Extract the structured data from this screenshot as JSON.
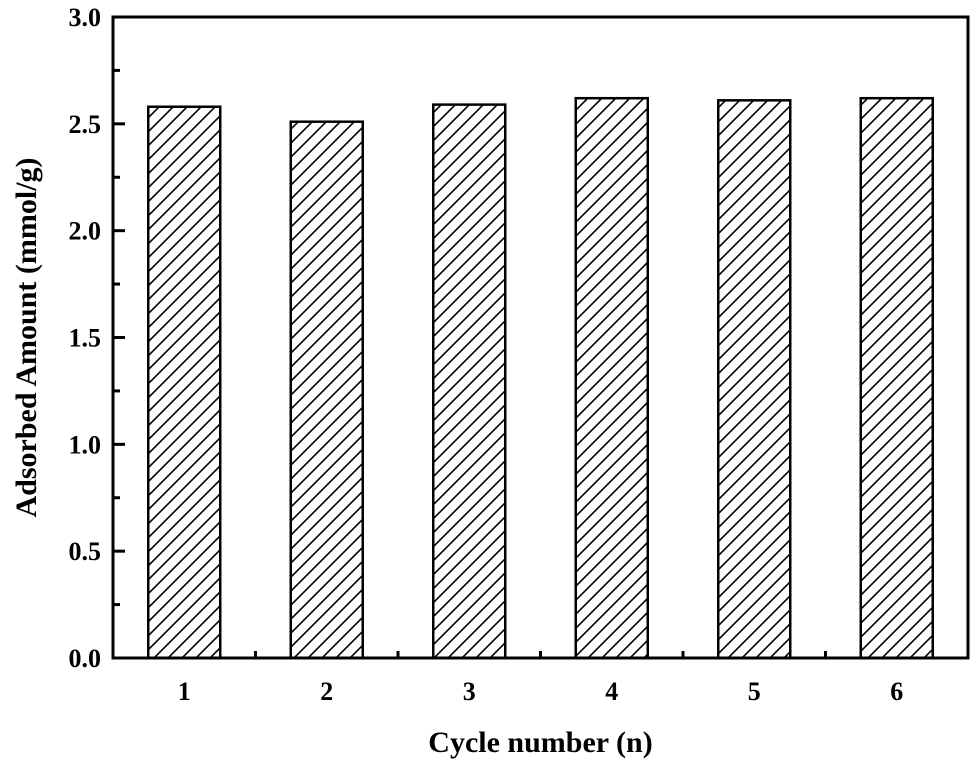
{
  "chart_data": {
    "type": "bar",
    "title": "",
    "xlabel": "Cycle number (n)",
    "ylabel": "Adsorbed Amount (mmol/g)",
    "categories": [
      "1",
      "2",
      "3",
      "4",
      "5",
      "6"
    ],
    "values": [
      2.58,
      2.51,
      2.59,
      2.62,
      2.61,
      2.62
    ],
    "ylim": [
      0,
      3.0
    ],
    "yticks": [
      "0.0",
      "0.5",
      "1.0",
      "1.5",
      "2.0",
      "2.5",
      "3.0"
    ],
    "bar_fill": "diagonal-hatch",
    "colors": {
      "stroke": "#000000",
      "background": "#ffffff"
    },
    "grid": false,
    "legend": "none"
  }
}
